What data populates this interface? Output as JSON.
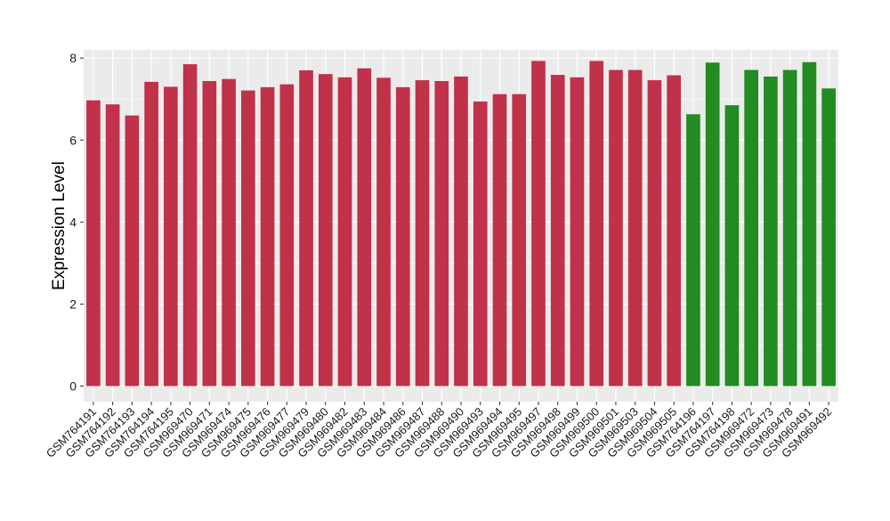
{
  "chart_data": {
    "type": "bar",
    "title": "",
    "xlabel": "",
    "ylabel": "Expression Level",
    "ylim": [
      0,
      8.2
    ],
    "yticks": [
      0,
      2,
      4,
      6,
      8
    ],
    "grid": true,
    "colors": {
      "group1": "#c0314a",
      "group2": "#228b22",
      "panel": "#ebebeb",
      "grid": "#ffffff"
    },
    "categories": [
      "GSM764191",
      "GSM764192",
      "GSM764193",
      "GSM764194",
      "GSM764195",
      "GSM969470",
      "GSM969471",
      "GSM969474",
      "GSM969475",
      "GSM969476",
      "GSM969477",
      "GSM969479",
      "GSM969480",
      "GSM969482",
      "GSM969483",
      "GSM969484",
      "GSM969486",
      "GSM969487",
      "GSM969488",
      "GSM969490",
      "GSM969493",
      "GSM969494",
      "GSM969495",
      "GSM969497",
      "GSM969498",
      "GSM969499",
      "GSM969500",
      "GSM969501",
      "GSM969503",
      "GSM969504",
      "GSM969505",
      "GSM764196",
      "GSM764197",
      "GSM764198",
      "GSM969472",
      "GSM969473",
      "GSM969478",
      "GSM969491",
      "GSM969492"
    ],
    "values": [
      6.97,
      6.87,
      6.6,
      7.42,
      7.3,
      7.85,
      7.44,
      7.49,
      7.21,
      7.29,
      7.36,
      7.7,
      7.61,
      7.53,
      7.75,
      7.52,
      7.29,
      7.46,
      7.44,
      7.55,
      6.94,
      7.12,
      7.12,
      7.93,
      7.59,
      7.53,
      7.93,
      7.71,
      7.71,
      7.46,
      7.58,
      6.63,
      7.89,
      6.85,
      7.71,
      7.55,
      7.71,
      7.9,
      7.26
    ],
    "groups": [
      1,
      1,
      1,
      1,
      1,
      1,
      1,
      1,
      1,
      1,
      1,
      1,
      1,
      1,
      1,
      1,
      1,
      1,
      1,
      1,
      1,
      1,
      1,
      1,
      1,
      1,
      1,
      1,
      1,
      1,
      1,
      2,
      2,
      2,
      2,
      2,
      2,
      2,
      2
    ]
  }
}
